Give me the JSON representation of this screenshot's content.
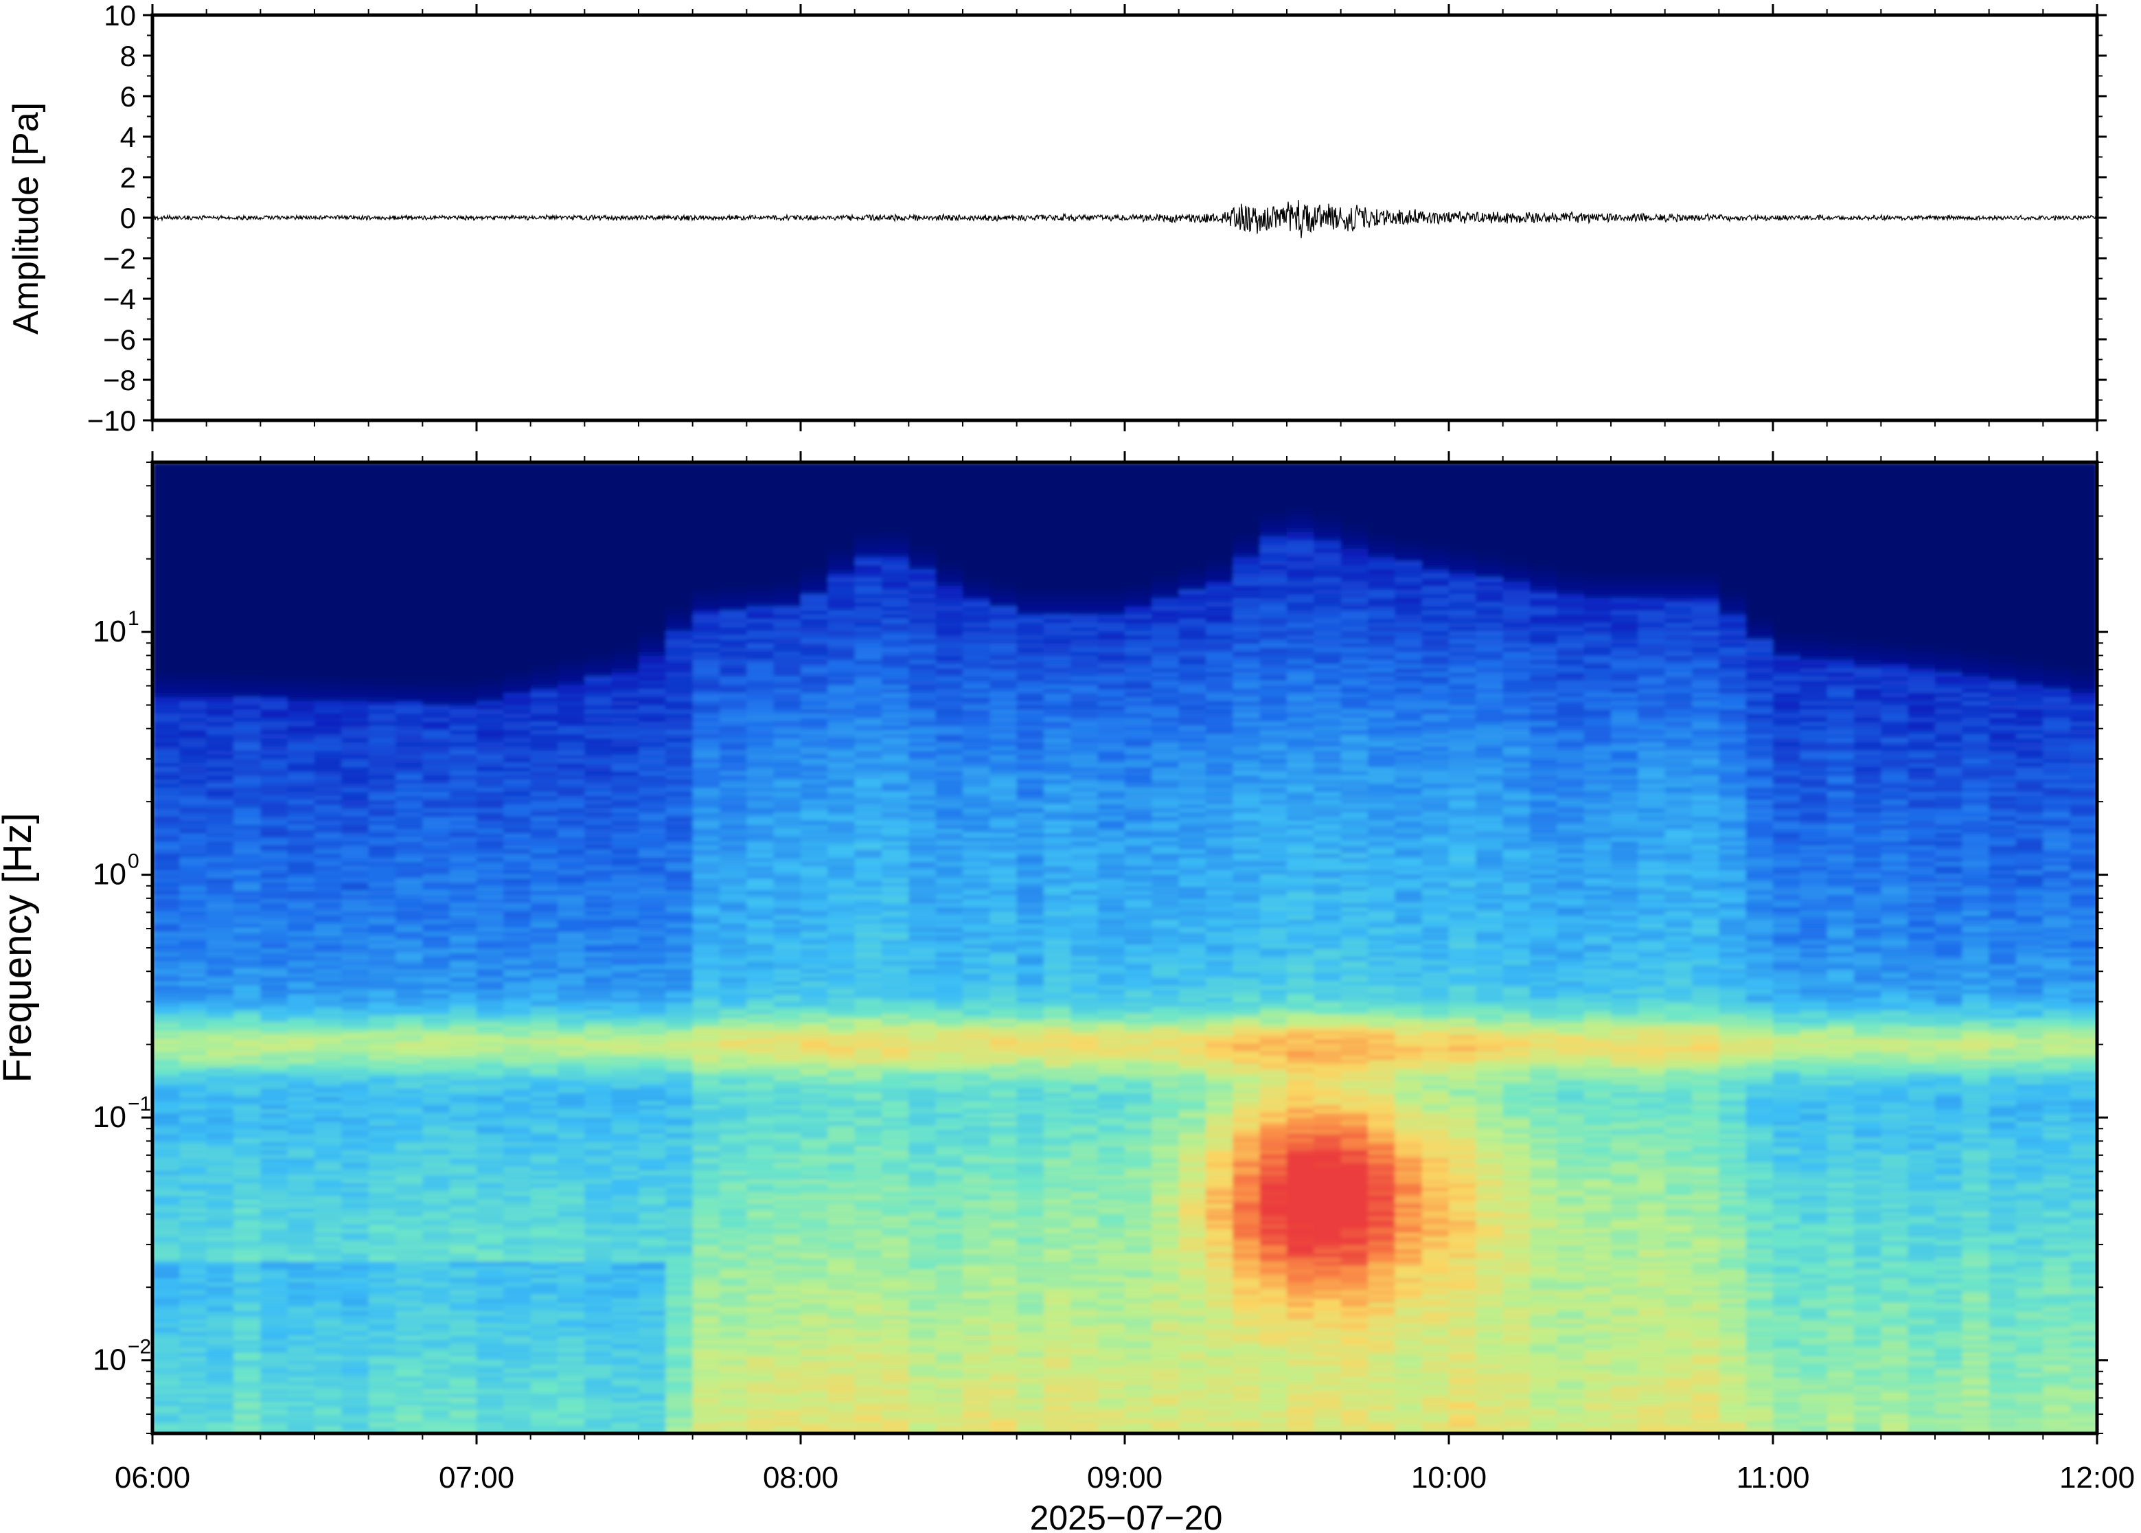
{
  "chart_data": [
    {
      "panel": "waveform",
      "type": "line",
      "ylabel": "Amplitude [Pa]",
      "ylim": [
        -10,
        10
      ],
      "yticks": [
        10,
        8,
        6,
        4,
        2,
        0,
        -2,
        -4,
        -6,
        -8,
        -10
      ],
      "ytick_labels": [
        "10",
        "8",
        "6",
        "4",
        "2",
        "0",
        "−2",
        "−4",
        "−6",
        "−8",
        "−10"
      ],
      "x_range": [
        "06:00",
        "12:00"
      ],
      "envelope": {
        "time_hours": [
          6.0,
          6.5,
          7.0,
          7.5,
          8.0,
          8.5,
          9.0,
          9.3,
          9.35,
          9.5,
          9.55,
          9.6,
          9.7,
          9.8,
          10.0,
          10.3,
          10.5,
          10.8,
          11.0,
          11.5,
          12.0
        ],
        "peak_abs_pa": [
          0.12,
          0.12,
          0.13,
          0.14,
          0.15,
          0.18,
          0.18,
          0.3,
          0.9,
          0.8,
          1.2,
          0.9,
          0.8,
          0.5,
          0.35,
          0.3,
          0.25,
          0.2,
          0.15,
          0.13,
          0.12
        ]
      },
      "line_color": "#000000"
    },
    {
      "panel": "spectrogram",
      "type": "heatmap",
      "ylabel": "Frequency [Hz]",
      "yscale": "log",
      "ylim": [
        0.005,
        50
      ],
      "yticks": [
        10,
        1,
        0.1,
        0.01
      ],
      "ytick_labels": [
        {
          "base": "10",
          "exp": "1"
        },
        {
          "base": "10",
          "exp": "0"
        },
        {
          "base": "10",
          "exp": "−1"
        },
        {
          "base": "10",
          "exp": "−2"
        }
      ],
      "xlabel": "2025−07−20",
      "xticks": [
        "06:00",
        "07:00",
        "08:00",
        "09:00",
        "10:00",
        "11:00",
        "12:00"
      ],
      "colormap": "jet",
      "colors": {
        "low": "#000a7a",
        "high": "#ee4040"
      },
      "features": {
        "microseism_band_hz": 0.2,
        "event_window": [
          "09:20",
          "09:50"
        ],
        "event_peak_freq_hz": 0.05,
        "high_freq_cutoff_hz": {
          "time_hours": [
            6.0,
            7.0,
            7.5,
            7.7,
            8.0,
            8.25,
            8.5,
            8.7,
            9.0,
            9.3,
            9.5,
            9.8,
            10.0,
            10.4,
            10.8,
            11.0,
            11.5,
            12.0
          ],
          "freq_hz": [
            5.5,
            5.0,
            7.0,
            12.0,
            13.0,
            22.0,
            14.0,
            12.0,
            12.0,
            16.0,
            27.0,
            20.0,
            18.0,
            14.0,
            14.0,
            8.0,
            7.0,
            5.5
          ]
        }
      }
    }
  ]
}
